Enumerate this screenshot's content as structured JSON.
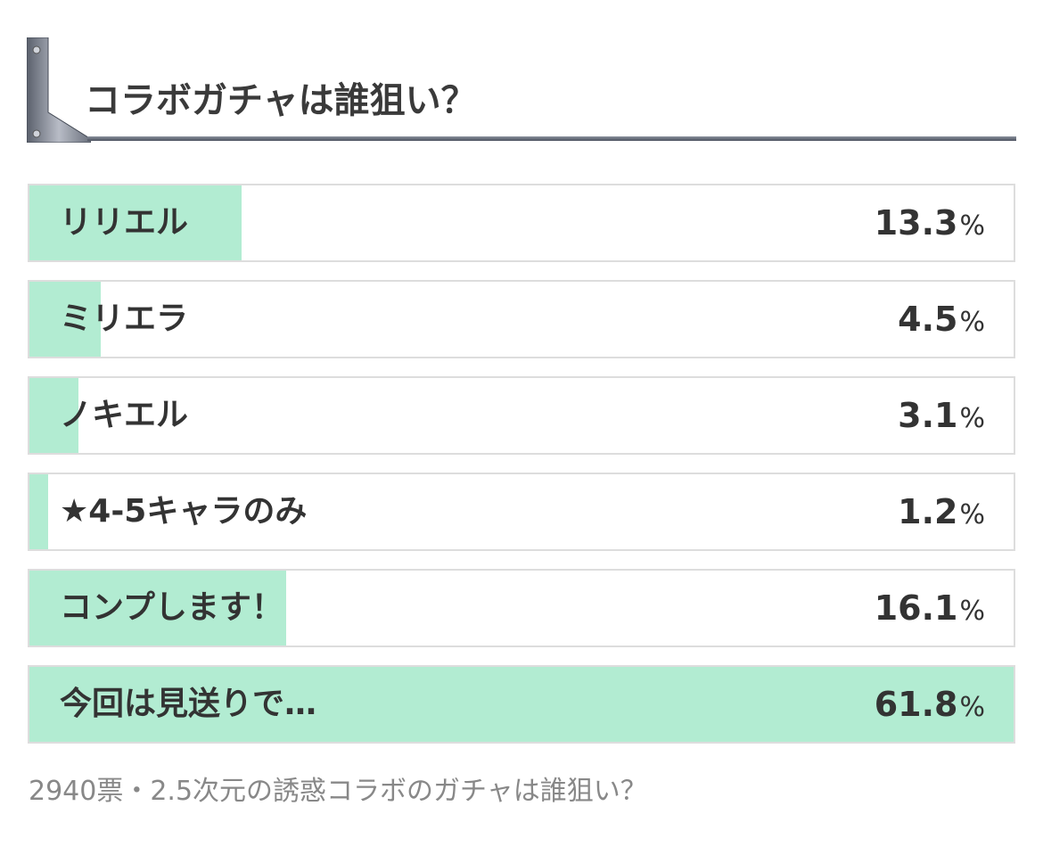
{
  "poll": {
    "title": "コラボガチャは誰狙い？",
    "percent_sign": "%",
    "options": [
      {
        "label": "リリエル",
        "percent": "13.3",
        "value": 13.3
      },
      {
        "label": "ミリエラ",
        "percent": "4.5",
        "value": 4.5
      },
      {
        "label": "ノキエル",
        "percent": "3.1",
        "value": 3.1
      },
      {
        "label": "★4-5キャラのみ",
        "percent": "1.2",
        "value": 1.2
      },
      {
        "label": "コンプします！",
        "percent": "16.1",
        "value": 16.1
      },
      {
        "label": "今回は見送りで…",
        "percent": "61.8",
        "value": 61.8
      }
    ],
    "footer": "2940票・2.5次元の誘惑コラボのガチャは誰狙い？",
    "colors": {
      "bar_fill": "#b2ecd2",
      "border": "#dddddd",
      "text": "#333333"
    }
  }
}
